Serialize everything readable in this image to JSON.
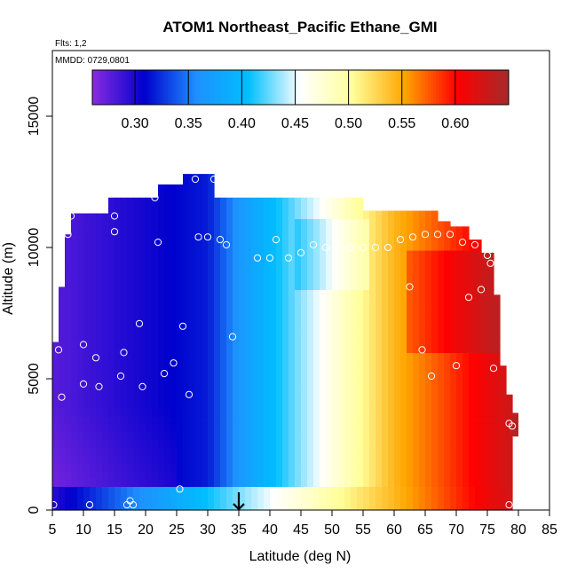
{
  "chart_data": {
    "type": "heatmap",
    "title": "ATOM1 Northeast_Pacific Ethane_GMI",
    "annotations": {
      "flights": "Flts: 1,2",
      "dates": "MMDD: 0729,0801"
    },
    "xlabel": "Latitude (deg N)",
    "ylabel": "Altitude (m)",
    "xlim": [
      5,
      85
    ],
    "ylim": [
      0,
      17500
    ],
    "x_ticks": [
      5,
      10,
      15,
      20,
      25,
      30,
      35,
      40,
      45,
      50,
      55,
      60,
      65,
      70,
      75,
      80,
      85
    ],
    "y_ticks": [
      0,
      5000,
      10000,
      15000
    ],
    "colorbar": {
      "range": [
        0.26,
        0.65
      ],
      "ticks": [
        0.3,
        0.35,
        0.4,
        0.45,
        0.5,
        0.55,
        0.6
      ],
      "tick_labels": [
        "0.30",
        "0.35",
        "0.40",
        "0.45",
        "0.50",
        "0.55",
        "0.60"
      ],
      "colors": [
        "#8a2be2",
        "#0000cd",
        "#1e90ff",
        "#00bfff",
        "#ffffff",
        "#ffff99",
        "#ffa500",
        "#ff0000",
        "#a52a2a"
      ]
    },
    "marker": {
      "latitude": 35,
      "symbol": "down-arrow"
    },
    "field_description": "Ethane mixing ratio: low (~0.28-0.32) south of 30N, rising through ~0.45 near 45-50N to ~0.60+ north of 60N at mid altitudes",
    "sample_points": [
      [
        5.2,
        200
      ],
      [
        6,
        6100
      ],
      [
        6.5,
        4300
      ],
      [
        7.5,
        10500
      ],
      [
        8,
        11200
      ],
      [
        10,
        6300
      ],
      [
        10,
        4800
      ],
      [
        11,
        200
      ],
      [
        11,
        200
      ],
      [
        12,
        5800
      ],
      [
        12.5,
        4700
      ],
      [
        15,
        11200
      ],
      [
        15,
        10600
      ],
      [
        16,
        5100
      ],
      [
        16.5,
        6000
      ],
      [
        17,
        200
      ],
      [
        17.5,
        350
      ],
      [
        18,
        200
      ],
      [
        19,
        7100
      ],
      [
        19.5,
        4700
      ],
      [
        21.5,
        11900
      ],
      [
        22,
        10200
      ],
      [
        23,
        5200
      ],
      [
        24.5,
        5600
      ],
      [
        25.5,
        800
      ],
      [
        26,
        7000
      ],
      [
        27,
        4400
      ],
      [
        28,
        12600
      ],
      [
        28.5,
        10400
      ],
      [
        30,
        10400
      ],
      [
        31,
        12600
      ],
      [
        32,
        10300
      ],
      [
        33,
        10100
      ],
      [
        34,
        6600
      ],
      [
        38,
        9600
      ],
      [
        40,
        9600
      ],
      [
        41,
        10300
      ],
      [
        43,
        9600
      ],
      [
        45,
        9800
      ],
      [
        47,
        10100
      ],
      [
        49,
        10000
      ],
      [
        51,
        10000
      ],
      [
        53,
        10000
      ],
      [
        55,
        10000
      ],
      [
        57,
        10000
      ],
      [
        59,
        10000
      ],
      [
        61,
        10300
      ],
      [
        63,
        10400
      ],
      [
        65,
        10500
      ],
      [
        67,
        10500
      ],
      [
        69,
        10500
      ],
      [
        71,
        10200
      ],
      [
        73,
        10100
      ],
      [
        75,
        9700
      ],
      [
        75.5,
        9400
      ],
      [
        62.5,
        8500
      ],
      [
        72,
        8100
      ],
      [
        74,
        8400
      ],
      [
        64.5,
        6100
      ],
      [
        66,
        5100
      ],
      [
        70,
        5500
      ],
      [
        76,
        5400
      ],
      [
        78.5,
        3300
      ],
      [
        79,
        3200
      ],
      [
        78.5,
        200
      ],
      [
        75,
        9700
      ]
    ]
  }
}
